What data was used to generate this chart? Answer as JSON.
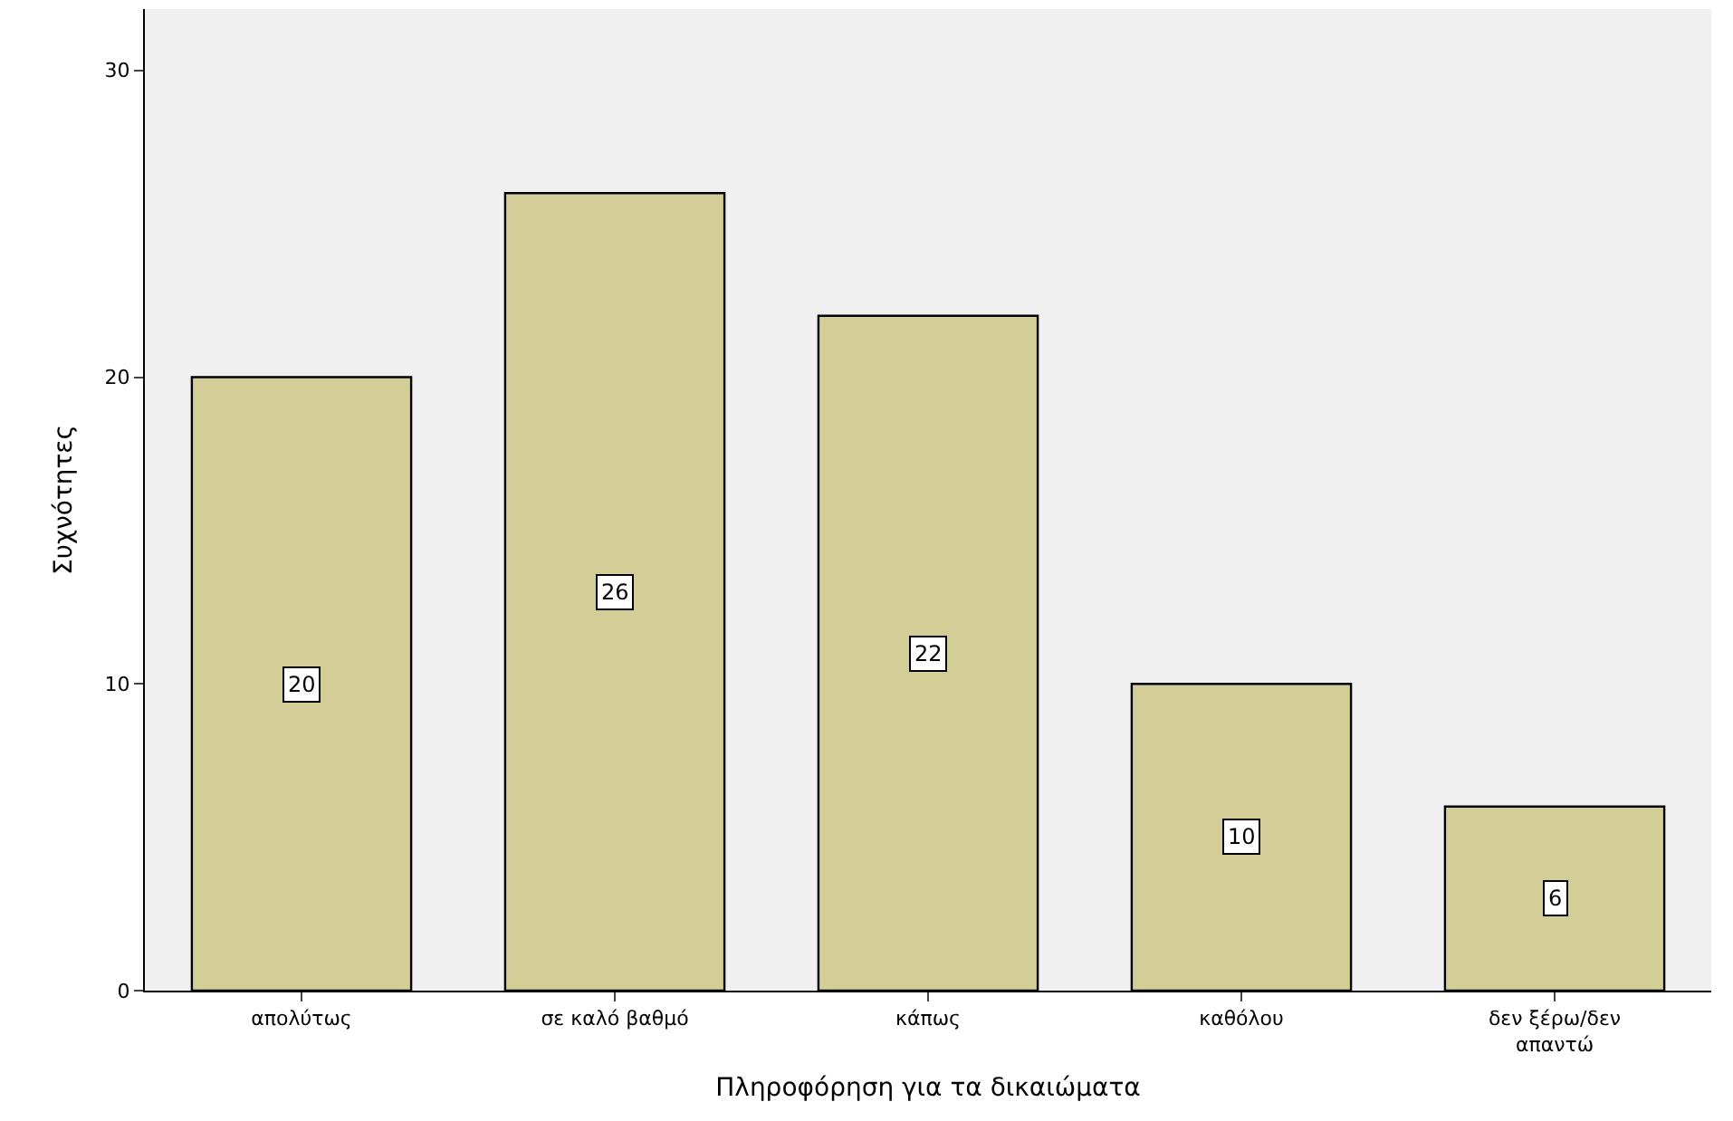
{
  "chart_data": {
    "type": "bar",
    "xlabel": "Πληροφόρηση για τα δικαιώματα",
    "ylabel": "Συχνότητες",
    "categories": [
      "απολύτως",
      "σε καλό βαθμό",
      "κάπως",
      "καθόλου",
      "δεν ξέρω/δεν απαντώ"
    ],
    "values": [
      20,
      26,
      22,
      10,
      6
    ],
    "color": "#d3ce97",
    "ylim": [
      0,
      32
    ],
    "yticks": [
      0,
      10,
      20,
      30
    ],
    "grid": false,
    "data_labels": true,
    "legend": false
  }
}
